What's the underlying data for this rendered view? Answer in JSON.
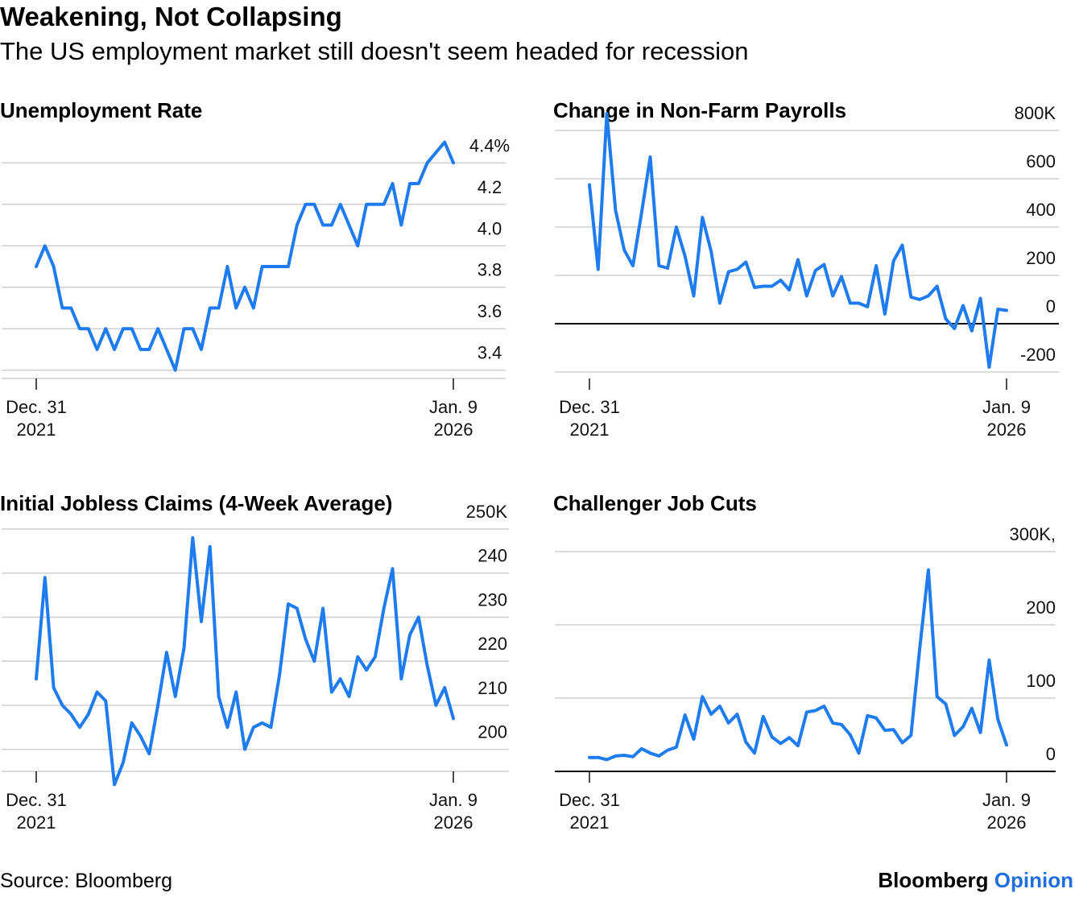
{
  "header": {
    "title": "Weakening, Not Collapsing",
    "subtitle": "The US employment market still doesn't seem headed for recession"
  },
  "footer": {
    "source": "Source: Bloomberg",
    "brand": "Bloomberg",
    "brand_accent": "Opinion"
  },
  "colors": {
    "line": "#1f7cf0",
    "grid": "#cfcfcf",
    "zero_line": "#111111"
  },
  "chart_data": [
    {
      "type": "line",
      "title": "Unemployment Rate",
      "x_labels": [
        {
          "line1": "Dec. 31",
          "line2": "2021"
        },
        {
          "line1": "Jan. 9",
          "line2": "2026"
        }
      ],
      "ylim": [
        3.36,
        4.44
      ],
      "yticks": [
        {
          "value": 4.4,
          "label": "4.4%"
        },
        {
          "value": 4.2,
          "label": "4.2"
        },
        {
          "value": 4.0,
          "label": "4.0"
        },
        {
          "value": 3.8,
          "label": "3.8"
        },
        {
          "value": 3.6,
          "label": "3.6"
        },
        {
          "value": 3.4,
          "label": "3.4"
        }
      ],
      "zero_line": false,
      "values": [
        3.9,
        4.0,
        3.9,
        3.7,
        3.7,
        3.6,
        3.6,
        3.5,
        3.6,
        3.5,
        3.6,
        3.6,
        3.5,
        3.5,
        3.6,
        3.5,
        3.4,
        3.6,
        3.6,
        3.5,
        3.7,
        3.7,
        3.9,
        3.7,
        3.8,
        3.7,
        3.9,
        3.9,
        3.9,
        3.9,
        4.1,
        4.2,
        4.2,
        4.1,
        4.1,
        4.2,
        4.1,
        4.0,
        4.2,
        4.2,
        4.2,
        4.3,
        4.1,
        4.3,
        4.3,
        4.4,
        4.45,
        4.5,
        4.4
      ]
    },
    {
      "type": "line",
      "title": "Change in Non-Farm Payrolls",
      "x_labels": [
        {
          "line1": "Dec. 31",
          "line2": "2021"
        },
        {
          "line1": "Jan. 9",
          "line2": "2026"
        }
      ],
      "ylim": [
        -200,
        800
      ],
      "yticks": [
        {
          "value": 800,
          "label": "800K"
        },
        {
          "value": 600,
          "label": "600"
        },
        {
          "value": 400,
          "label": "400"
        },
        {
          "value": 200,
          "label": "200"
        },
        {
          "value": 0,
          "label": "0"
        },
        {
          "value": -200,
          "label": "-200"
        }
      ],
      "zero_line": true,
      "values": [
        575,
        225,
        870,
        470,
        305,
        240,
        460,
        690,
        240,
        230,
        400,
        280,
        115,
        440,
        300,
        85,
        215,
        225,
        255,
        150,
        155,
        155,
        180,
        140,
        265,
        115,
        220,
        245,
        115,
        195,
        85,
        85,
        70,
        240,
        40,
        260,
        325,
        110,
        100,
        115,
        155,
        20,
        -20,
        75,
        -30,
        105,
        -180,
        60,
        55
      ]
    },
    {
      "type": "line",
      "title": "Initial Jobless Claims (4-Week Average)",
      "x_labels": [
        {
          "line1": "Dec. 31",
          "line2": "2021"
        },
        {
          "line1": "Jan. 9",
          "line2": "2026"
        }
      ],
      "ylim": [
        195,
        250
      ],
      "yticks": [
        {
          "value": 250,
          "label": "250K"
        },
        {
          "value": 240,
          "label": "240"
        },
        {
          "value": 230,
          "label": "230"
        },
        {
          "value": 220,
          "label": "220"
        },
        {
          "value": 210,
          "label": "210"
        },
        {
          "value": 200,
          "label": "200"
        }
      ],
      "zero_line": false,
      "values": [
        216,
        239,
        214,
        210,
        208,
        205,
        208,
        213,
        211,
        192,
        197,
        206,
        203,
        199,
        210,
        222,
        212,
        223,
        248,
        229,
        246,
        212,
        205,
        213,
        200,
        205,
        206,
        205,
        217,
        233,
        232,
        225,
        220,
        232,
        213,
        216,
        212,
        221,
        218,
        221,
        232,
        241,
        216,
        226,
        230,
        219,
        210,
        214,
        207
      ]
    },
    {
      "type": "line",
      "title": "Challenger Job Cuts",
      "x_labels": [
        {
          "line1": "Dec. 31",
          "line2": "2021"
        },
        {
          "line1": "Jan. 9",
          "line2": "2026"
        }
      ],
      "ylim": [
        0,
        300
      ],
      "yticks": [
        {
          "value": 300,
          "label": "300K,"
        },
        {
          "value": 200,
          "label": "200"
        },
        {
          "value": 100,
          "label": "100"
        },
        {
          "value": 0,
          "label": "0"
        }
      ],
      "zero_line": false,
      "values": [
        19,
        19,
        16,
        21,
        22,
        20,
        31,
        25,
        21,
        29,
        33,
        77,
        44,
        102,
        78,
        89,
        66,
        78,
        40,
        25,
        75,
        47,
        38,
        46,
        35,
        81,
        83,
        89,
        66,
        64,
        50,
        25,
        76,
        73,
        56,
        57,
        39,
        49,
        167,
        275,
        102,
        92,
        49,
        61,
        86,
        53,
        152,
        71,
        36
      ]
    }
  ]
}
